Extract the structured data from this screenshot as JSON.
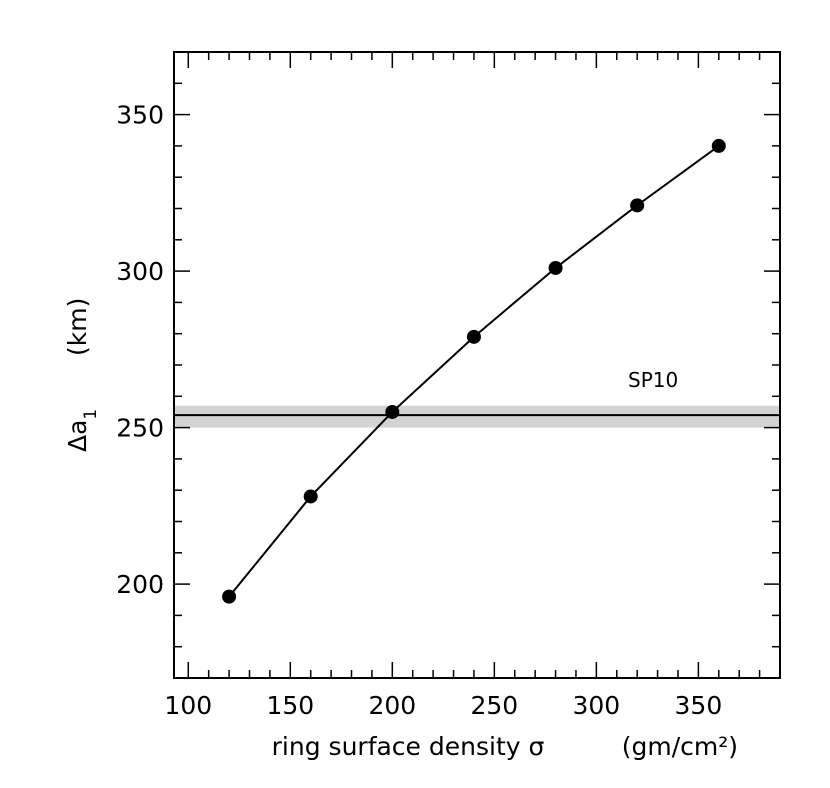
{
  "chart_data": {
    "type": "line",
    "title": "",
    "xlabel": "ring surface density σ",
    "xlabel_unit": "(gm/cm²)",
    "ylabel_symbol": "Δa",
    "ylabel_subscript": "1",
    "ylabel_unit": "(km)",
    "xlim": [
      93,
      390
    ],
    "ylim": [
      170,
      370
    ],
    "xticks_major": [
      100,
      150,
      200,
      250,
      300,
      350
    ],
    "xticks_minor_step": 10,
    "yticks_major": [
      200,
      250,
      300,
      350
    ],
    "yticks_minor_step": 10,
    "grid": false,
    "series": [
      {
        "x": [
          120,
          160,
          200,
          240,
          280,
          320,
          360
        ],
        "y": [
          196,
          228,
          255,
          279,
          301,
          321,
          340
        ],
        "marker": "filled-circle",
        "line": "solid",
        "color": "#000000"
      }
    ],
    "reference_band": {
      "label": "SP10",
      "y": 254,
      "y_low": 250,
      "y_high": 257,
      "line_color": "#000000",
      "band_color": "#d3d3d3"
    }
  }
}
